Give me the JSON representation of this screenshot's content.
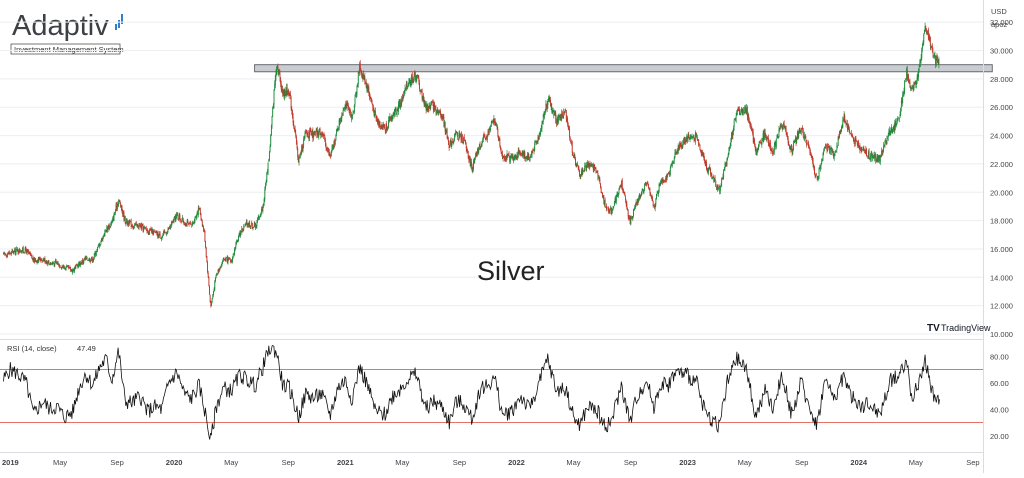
{
  "logo": {
    "name": "Adaptiv",
    "tagline": "Investment Management System"
  },
  "watermark": {
    "label": "Silver"
  },
  "brand": {
    "label": "TradingView"
  },
  "currency": {
    "code": "USD",
    "unit": "apoz"
  },
  "rsi_legend": {
    "label": "RSI (14, close)",
    "value": "47.49"
  },
  "colors": {
    "up": "#1e8a3c",
    "down": "#c0392b",
    "line": "#111111",
    "band": "#c9cdd2",
    "rsi_bound": "#e57368",
    "grid": "#eceef1"
  },
  "chart_data": [
    {
      "type": "line",
      "subtype": "candlestick",
      "title": "Silver",
      "ylabel": "USD apoz",
      "ylim": [
        10,
        33
      ],
      "y_ticks": [
        "10.000",
        "12.000",
        "14.000",
        "16.000",
        "18.000",
        "20.000",
        "22.000",
        "24.000",
        "26.000",
        "28.000",
        "30.000",
        "32.000"
      ],
      "x_ticks": [
        "2019",
        "May",
        "Sep",
        "2020",
        "May",
        "Sep",
        "2021",
        "May",
        "Sep",
        "2022",
        "May",
        "Sep",
        "2023",
        "May",
        "Sep",
        "2024",
        "May",
        "Sep"
      ],
      "resistance_zone": [
        28.5,
        29.0
      ],
      "series": [
        {
          "values": [
            [
              "2019-01-02",
              15.6
            ],
            [
              "2019-01-15",
              15.7
            ],
            [
              "2019-02-01",
              15.9
            ],
            [
              "2019-02-20",
              15.9
            ],
            [
              "2019-03-05",
              15.2
            ],
            [
              "2019-03-25",
              15.3
            ],
            [
              "2019-04-10",
              15.0
            ],
            [
              "2019-04-25",
              15.0
            ],
            [
              "2019-05-10",
              14.7
            ],
            [
              "2019-05-28",
              14.5
            ],
            [
              "2019-06-10",
              14.9
            ],
            [
              "2019-06-25",
              15.3
            ],
            [
              "2019-07-10",
              15.3
            ],
            [
              "2019-07-25",
              16.4
            ],
            [
              "2019-08-08",
              17.4
            ],
            [
              "2019-08-20",
              17.8
            ],
            [
              "2019-09-04",
              19.5
            ],
            [
              "2019-09-18",
              18.0
            ],
            [
              "2019-10-03",
              17.7
            ],
            [
              "2019-10-20",
              17.6
            ],
            [
              "2019-11-05",
              17.3
            ],
            [
              "2019-11-20",
              17.1
            ],
            [
              "2019-12-05",
              16.9
            ],
            [
              "2019-12-20",
              17.4
            ],
            [
              "2020-01-07",
              18.4
            ],
            [
              "2020-01-22",
              17.9
            ],
            [
              "2020-02-07",
              17.6
            ],
            [
              "2020-02-24",
              18.9
            ],
            [
              "2020-03-05",
              17.0
            ],
            [
              "2020-03-18",
              11.9
            ],
            [
              "2020-03-30",
              14.2
            ],
            [
              "2020-04-15",
              15.3
            ],
            [
              "2020-05-01",
              15.1
            ],
            [
              "2020-05-20",
              17.2
            ],
            [
              "2020-06-05",
              17.8
            ],
            [
              "2020-06-22",
              17.6
            ],
            [
              "2020-07-08",
              19.0
            ],
            [
              "2020-07-22",
              22.9
            ],
            [
              "2020-08-06",
              29.2
            ],
            [
              "2020-08-20",
              27.0
            ],
            [
              "2020-09-03",
              27.2
            ],
            [
              "2020-09-23",
              22.2
            ],
            [
              "2020-10-08",
              24.2
            ],
            [
              "2020-10-25",
              24.0
            ],
            [
              "2020-11-10",
              24.3
            ],
            [
              "2020-11-30",
              22.5
            ],
            [
              "2020-12-15",
              24.5
            ],
            [
              "2020-12-31",
              26.4
            ],
            [
              "2021-01-15",
              25.1
            ],
            [
              "2021-02-01",
              28.8
            ],
            [
              "2021-02-18",
              27.4
            ],
            [
              "2021-03-05",
              25.2
            ],
            [
              "2021-03-25",
              24.5
            ],
            [
              "2021-04-10",
              25.4
            ],
            [
              "2021-04-28",
              26.3
            ],
            [
              "2021-05-15",
              27.9
            ],
            [
              "2021-06-01",
              28.2
            ],
            [
              "2021-06-20",
              26.0
            ],
            [
              "2021-07-05",
              26.1
            ],
            [
              "2021-07-25",
              25.4
            ],
            [
              "2021-08-10",
              23.3
            ],
            [
              "2021-08-25",
              24.1
            ],
            [
              "2021-09-10",
              23.7
            ],
            [
              "2021-09-28",
              21.7
            ],
            [
              "2021-10-15",
              23.4
            ],
            [
              "2021-11-01",
              24.1
            ],
            [
              "2021-11-15",
              25.2
            ],
            [
              "2021-12-01",
              22.6
            ],
            [
              "2021-12-20",
              22.4
            ],
            [
              "2022-01-10",
              22.8
            ],
            [
              "2022-01-28",
              22.4
            ],
            [
              "2022-02-15",
              23.6
            ],
            [
              "2022-03-07",
              26.6
            ],
            [
              "2022-03-25",
              25.1
            ],
            [
              "2022-04-15",
              25.6
            ],
            [
              "2022-05-01",
              22.5
            ],
            [
              "2022-05-15",
              21.2
            ],
            [
              "2022-06-01",
              22.0
            ],
            [
              "2022-06-20",
              21.6
            ],
            [
              "2022-07-05",
              19.3
            ],
            [
              "2022-07-20",
              18.6
            ],
            [
              "2022-08-12",
              20.6
            ],
            [
              "2022-08-30",
              17.9
            ],
            [
              "2022-09-15",
              19.3
            ],
            [
              "2022-10-05",
              20.8
            ],
            [
              "2022-10-20",
              18.9
            ],
            [
              "2022-11-05",
              20.9
            ],
            [
              "2022-11-20",
              21.0
            ],
            [
              "2022-12-05",
              22.8
            ],
            [
              "2022-12-30",
              23.9
            ],
            [
              "2023-01-20",
              23.9
            ],
            [
              "2023-02-10",
              21.9
            ],
            [
              "2023-03-08",
              20.1
            ],
            [
              "2023-03-25",
              22.5
            ],
            [
              "2023-04-14",
              25.6
            ],
            [
              "2023-05-05",
              25.8
            ],
            [
              "2023-05-25",
              22.9
            ],
            [
              "2023-06-15",
              24.2
            ],
            [
              "2023-06-30",
              22.8
            ],
            [
              "2023-07-20",
              25.0
            ],
            [
              "2023-08-10",
              22.9
            ],
            [
              "2023-08-30",
              24.6
            ],
            [
              "2023-09-15",
              23.2
            ],
            [
              "2023-10-03",
              20.8
            ],
            [
              "2023-10-20",
              23.4
            ],
            [
              "2023-11-10",
              22.6
            ],
            [
              "2023-11-30",
              25.3
            ],
            [
              "2023-12-15",
              24.0
            ],
            [
              "2024-01-05",
              23.1
            ],
            [
              "2024-01-25",
              22.6
            ],
            [
              "2024-02-15",
              22.3
            ],
            [
              "2024-03-08",
              24.5
            ],
            [
              "2024-03-25",
              25.0
            ],
            [
              "2024-04-12",
              28.5
            ],
            [
              "2024-04-22",
              27.0
            ],
            [
              "2024-05-08",
              28.5
            ],
            [
              "2024-05-20",
              32.0
            ],
            [
              "2024-06-03",
              30.5
            ],
            [
              "2024-06-12",
              29.3
            ],
            [
              "2024-06-21",
              29.2
            ]
          ]
        }
      ]
    },
    {
      "type": "line",
      "title": "RSI (14, close)",
      "last_value": 47.49,
      "ylim": [
        10,
        90
      ],
      "y_ticks": [
        "20.00",
        "40.00",
        "60.00",
        "80.00"
      ],
      "bounds": [
        30,
        70
      ],
      "series": [
        {
          "values": [
            [
              "2019-01-02",
              62
            ],
            [
              "2019-01-15",
              70
            ],
            [
              "2019-02-01",
              67
            ],
            [
              "2019-02-20",
              60
            ],
            [
              "2019-03-05",
              36
            ],
            [
              "2019-03-25",
              46
            ],
            [
              "2019-04-10",
              40
            ],
            [
              "2019-04-25",
              42
            ],
            [
              "2019-05-10",
              34
            ],
            [
              "2019-05-28",
              38
            ],
            [
              "2019-06-10",
              55
            ],
            [
              "2019-06-25",
              67
            ],
            [
              "2019-07-10",
              58
            ],
            [
              "2019-07-25",
              72
            ],
            [
              "2019-08-08",
              78
            ],
            [
              "2019-08-20",
              62
            ],
            [
              "2019-09-04",
              84
            ],
            [
              "2019-09-18",
              46
            ],
            [
              "2019-10-03",
              45
            ],
            [
              "2019-10-20",
              50
            ],
            [
              "2019-11-05",
              38
            ],
            [
              "2019-11-20",
              42
            ],
            [
              "2019-12-05",
              40
            ],
            [
              "2019-12-20",
              60
            ],
            [
              "2020-01-07",
              68
            ],
            [
              "2020-01-22",
              52
            ],
            [
              "2020-02-07",
              48
            ],
            [
              "2020-02-24",
              58
            ],
            [
              "2020-03-05",
              40
            ],
            [
              "2020-03-18",
              16
            ],
            [
              "2020-03-30",
              42
            ],
            [
              "2020-04-15",
              56
            ],
            [
              "2020-05-01",
              54
            ],
            [
              "2020-05-20",
              66
            ],
            [
              "2020-06-05",
              62
            ],
            [
              "2020-06-22",
              58
            ],
            [
              "2020-07-08",
              72
            ],
            [
              "2020-07-22",
              86
            ],
            [
              "2020-08-06",
              84
            ],
            [
              "2020-08-20",
              58
            ],
            [
              "2020-09-03",
              56
            ],
            [
              "2020-09-23",
              34
            ],
            [
              "2020-10-08",
              52
            ],
            [
              "2020-10-25",
              48
            ],
            [
              "2020-11-10",
              52
            ],
            [
              "2020-11-30",
              36
            ],
            [
              "2020-12-15",
              56
            ],
            [
              "2020-12-31",
              62
            ],
            [
              "2021-01-15",
              48
            ],
            [
              "2021-02-01",
              72
            ],
            [
              "2021-02-18",
              58
            ],
            [
              "2021-03-05",
              38
            ],
            [
              "2021-03-25",
              36
            ],
            [
              "2021-04-10",
              50
            ],
            [
              "2021-04-28",
              56
            ],
            [
              "2021-05-15",
              64
            ],
            [
              "2021-06-01",
              66
            ],
            [
              "2021-06-20",
              40
            ],
            [
              "2021-07-05",
              46
            ],
            [
              "2021-07-25",
              42
            ],
            [
              "2021-08-10",
              30
            ],
            [
              "2021-08-25",
              46
            ],
            [
              "2021-09-10",
              44
            ],
            [
              "2021-09-28",
              32
            ],
            [
              "2021-10-15",
              56
            ],
            [
              "2021-11-01",
              58
            ],
            [
              "2021-11-15",
              64
            ],
            [
              "2021-12-01",
              36
            ],
            [
              "2021-12-20",
              38
            ],
            [
              "2022-01-10",
              50
            ],
            [
              "2022-01-28",
              40
            ],
            [
              "2022-02-15",
              56
            ],
            [
              "2022-03-07",
              78
            ],
            [
              "2022-03-25",
              54
            ],
            [
              "2022-04-15",
              56
            ],
            [
              "2022-05-01",
              34
            ],
            [
              "2022-05-15",
              28
            ],
            [
              "2022-06-01",
              42
            ],
            [
              "2022-06-20",
              40
            ],
            [
              "2022-07-05",
              28
            ],
            [
              "2022-07-20",
              30
            ],
            [
              "2022-08-12",
              58
            ],
            [
              "2022-08-30",
              30
            ],
            [
              "2022-09-15",
              50
            ],
            [
              "2022-10-05",
              62
            ],
            [
              "2022-10-20",
              42
            ],
            [
              "2022-11-05",
              60
            ],
            [
              "2022-11-20",
              58
            ],
            [
              "2022-12-05",
              68
            ],
            [
              "2022-12-30",
              66
            ],
            [
              "2023-01-20",
              60
            ],
            [
              "2023-02-10",
              36
            ],
            [
              "2023-03-08",
              28
            ],
            [
              "2023-03-25",
              60
            ],
            [
              "2023-04-14",
              78
            ],
            [
              "2023-05-05",
              70
            ],
            [
              "2023-05-25",
              34
            ],
            [
              "2023-06-15",
              54
            ],
            [
              "2023-06-30",
              40
            ],
            [
              "2023-07-20",
              66
            ],
            [
              "2023-08-10",
              36
            ],
            [
              "2023-08-30",
              60
            ],
            [
              "2023-09-15",
              44
            ],
            [
              "2023-10-03",
              28
            ],
            [
              "2023-10-20",
              62
            ],
            [
              "2023-11-10",
              48
            ],
            [
              "2023-11-30",
              66
            ],
            [
              "2023-12-15",
              50
            ],
            [
              "2024-01-05",
              42
            ],
            [
              "2024-01-25",
              44
            ],
            [
              "2024-02-15",
              36
            ],
            [
              "2024-03-08",
              62
            ],
            [
              "2024-03-25",
              66
            ],
            [
              "2024-04-12",
              76
            ],
            [
              "2024-04-22",
              50
            ],
            [
              "2024-05-08",
              58
            ],
            [
              "2024-05-20",
              79
            ],
            [
              "2024-06-03",
              54
            ],
            [
              "2024-06-12",
              48
            ],
            [
              "2024-06-21",
              47.49
            ]
          ]
        }
      ]
    }
  ]
}
